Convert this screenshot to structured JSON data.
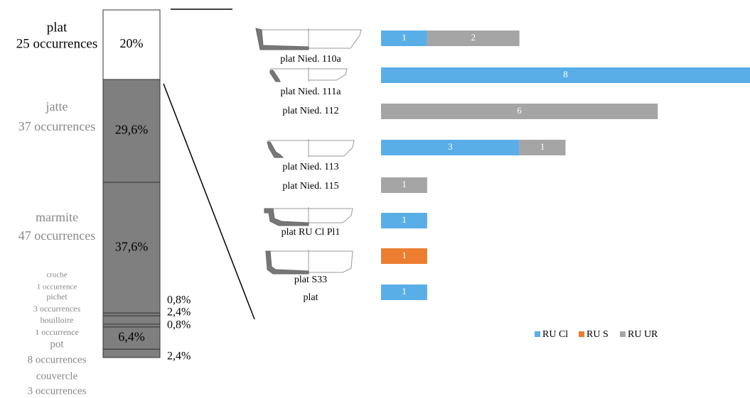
{
  "chart_data": [
    {
      "type": "stacked-column",
      "categories": [
        "plat",
        "jatte",
        "marmite",
        "cruche",
        "pichet",
        "bouilloire",
        "pot",
        "couvercle"
      ],
      "occurrences": [
        "25 occurrences",
        "37 occurrences",
        "47 occurrences",
        "1 occurrence",
        "3 occurrences",
        "1 occurrence",
        "8 occurrences",
        "3 occurrences"
      ],
      "values": [
        20,
        29.6,
        37.6,
        0.8,
        2.4,
        0.8,
        6.4,
        2.4
      ],
      "value_labels": [
        "20%",
        "29,6%",
        "37,6%",
        "0,8%",
        "2,4%",
        "0,8%",
        "6,4%",
        "2,4%"
      ],
      "colors": [
        "#ffffff",
        "#7f7f7f",
        "#7f7f7f",
        "#7f7f7f",
        "#7f7f7f",
        "#7f7f7f",
        "#7f7f7f",
        "#7f7f7f"
      ]
    },
    {
      "type": "stacked-barh",
      "categories": [
        "plat Nied. 110a",
        "plat Nied. 111a",
        "plat Nied. 112",
        "plat Nied. 113",
        "plat Nied. 115",
        "plat RU Cl Pl1",
        "plat S33",
        "plat"
      ],
      "series": [
        {
          "name": "RU Cl",
          "color": "#5aaee8",
          "values": [
            1,
            8,
            null,
            3,
            null,
            1,
            null,
            1
          ]
        },
        {
          "name": "RU S",
          "color": "#ed7d31",
          "values": [
            null,
            null,
            null,
            null,
            null,
            null,
            1,
            null
          ]
        },
        {
          "name": "RU UR",
          "color": "#a5a5a5",
          "values": [
            2,
            null,
            6,
            1,
            1,
            null,
            null,
            null
          ]
        }
      ],
      "legend": "bottom"
    }
  ]
}
